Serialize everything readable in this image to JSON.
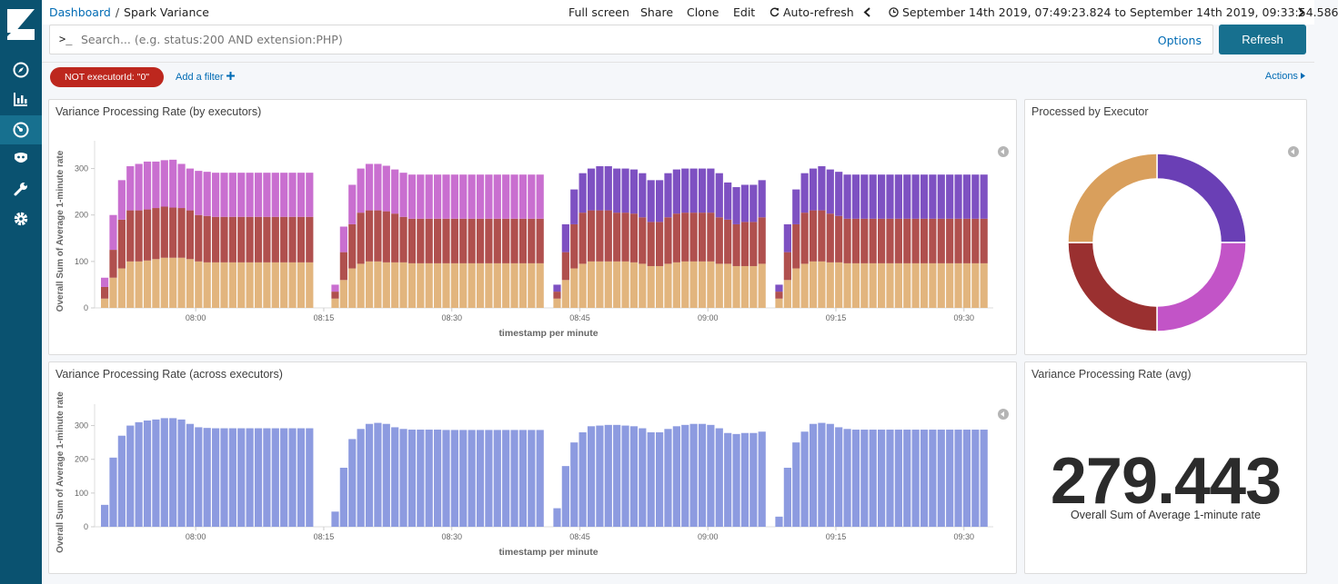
{
  "sidebar": {
    "items": [
      {
        "icon": "compass-icon",
        "label": "Discover"
      },
      {
        "icon": "bar-chart-icon",
        "label": "Visualize"
      },
      {
        "icon": "dashboard-icon",
        "label": "Dashboard",
        "active": true
      },
      {
        "icon": "timelion-icon",
        "label": "Timelion"
      },
      {
        "icon": "wrench-icon",
        "label": "Dev Tools"
      },
      {
        "icon": "gear-icon",
        "label": "Management"
      }
    ]
  },
  "breadcrumb": {
    "root": "Dashboard",
    "separator": "/",
    "current": "Spark Variance"
  },
  "top_actions": {
    "full_screen": "Full screen",
    "share": "Share",
    "clone": "Clone",
    "edit": "Edit",
    "auto_refresh": "Auto-refresh",
    "time_range": "September 14th 2019, 07:49:23.824 to September 14th 2019, 09:33:54.586"
  },
  "query": {
    "prompt": ">_",
    "placeholder": "Search... (e.g. status:200 AND extension:PHP)",
    "options": "Options",
    "refresh": "Refresh"
  },
  "filters": {
    "pill": "NOT executorId: \"0\"",
    "add": "Add a filter",
    "actions": "Actions"
  },
  "colors": {
    "c1": "#e2b57e",
    "c2": "#b0504e",
    "c3": "#c96fd0",
    "c4": "#7e51c2",
    "single": "#8d9be0",
    "donut_orange": "#d99f5c",
    "donut_purple": "#6a3fb5",
    "donut_pink": "#c254c7",
    "donut_red": "#9a3030"
  },
  "panels": {
    "p1": {
      "title": "Variance Processing Rate (by executors)"
    },
    "p2": {
      "title": "Processed by Executor"
    },
    "p3": {
      "title": "Variance Processing Rate (across executors)"
    },
    "p4": {
      "title": "Variance Processing Rate (avg)",
      "value": "279.443",
      "label": "Overall Sum of Average 1-minute rate"
    }
  },
  "chart_data": [
    {
      "type": "bar",
      "stacked": true,
      "title": "Variance Processing Rate (by executors)",
      "xlabel": "timestamp per minute",
      "ylabel": "Overall Sum of Average 1-minute rate",
      "ylim": [
        0,
        350
      ],
      "yticks": [
        0,
        100,
        200,
        300
      ],
      "xticks": [
        "08:00",
        "08:15",
        "08:30",
        "08:45",
        "09:00",
        "09:15",
        "09:30"
      ],
      "segments": [
        {
          "start_minute": 0,
          "values": [
            [
              20,
              25,
              20,
              0
            ],
            [
              65,
              60,
              75,
              0
            ],
            [
              85,
              105,
              85,
              0
            ],
            [
              100,
              110,
              95,
              0
            ],
            [
              100,
              110,
              100,
              0
            ],
            [
              102,
              110,
              103,
              0
            ],
            [
              105,
              110,
              100,
              0
            ],
            [
              108,
              110,
              100,
              0
            ],
            [
              108,
              108,
              103,
              0
            ],
            [
              108,
              107,
              95,
              0
            ],
            [
              105,
              105,
              90,
              0
            ],
            [
              100,
              100,
              95,
              0
            ],
            [
              98,
              100,
              95,
              0
            ],
            [
              98,
              98,
              95,
              0
            ],
            [
              98,
              98,
              95,
              0
            ],
            [
              98,
              98,
              95,
              0
            ],
            [
              98,
              98,
              95,
              0
            ],
            [
              98,
              98,
              95,
              0
            ],
            [
              98,
              98,
              95,
              0
            ],
            [
              98,
              98,
              95,
              0
            ],
            [
              98,
              98,
              95,
              0
            ],
            [
              98,
              98,
              95,
              0
            ],
            [
              98,
              98,
              95,
              0
            ],
            [
              98,
              98,
              95,
              0
            ],
            [
              98,
              98,
              95,
              0
            ]
          ]
        },
        {
          "start_minute": 27,
          "values": [
            [
              20,
              15,
              15,
              0
            ],
            [
              60,
              60,
              55,
              0
            ],
            [
              85,
              95,
              85,
              0
            ],
            [
              95,
              110,
              95,
              0
            ],
            [
              100,
              110,
              100,
              0
            ],
            [
              100,
              110,
              100,
              0
            ],
            [
              98,
              110,
              98,
              0
            ],
            [
              98,
              105,
              95,
              0
            ],
            [
              98,
              98,
              95,
              0
            ],
            [
              96,
              96,
              95,
              0
            ],
            [
              96,
              96,
              95,
              0
            ],
            [
              96,
              96,
              95,
              0
            ],
            [
              96,
              96,
              95,
              0
            ],
            [
              96,
              96,
              95,
              0
            ],
            [
              96,
              96,
              95,
              0
            ],
            [
              96,
              96,
              95,
              0
            ],
            [
              96,
              96,
              95,
              0
            ],
            [
              96,
              96,
              95,
              0
            ],
            [
              96,
              96,
              95,
              0
            ],
            [
              96,
              96,
              95,
              0
            ],
            [
              96,
              96,
              95,
              0
            ],
            [
              96,
              96,
              95,
              0
            ],
            [
              96,
              96,
              95,
              0
            ],
            [
              96,
              96,
              95,
              0
            ],
            [
              96,
              96,
              95,
              0
            ]
          ]
        },
        {
          "start_minute": 53,
          "values": [
            [
              20,
              15,
              0,
              15
            ],
            [
              60,
              60,
              0,
              60
            ],
            [
              85,
              95,
              0,
              75
            ],
            [
              95,
              110,
              0,
              85
            ],
            [
              100,
              110,
              0,
              90
            ],
            [
              100,
              110,
              0,
              95
            ],
            [
              100,
              110,
              0,
              95
            ],
            [
              100,
              105,
              0,
              95
            ],
            [
              100,
              105,
              0,
              95
            ],
            [
              98,
              105,
              0,
              95
            ],
            [
              95,
              100,
              0,
              95
            ],
            [
              90,
              95,
              0,
              90
            ],
            [
              90,
              95,
              0,
              90
            ],
            [
              95,
              100,
              0,
              95
            ],
            [
              98,
              105,
              0,
              95
            ],
            [
              100,
              105,
              0,
              95
            ],
            [
              100,
              105,
              0,
              95
            ],
            [
              100,
              105,
              0,
              95
            ],
            [
              100,
              105,
              0,
              95
            ],
            [
              95,
              100,
              0,
              95
            ],
            [
              95,
              95,
              0,
              80
            ],
            [
              90,
              90,
              0,
              80
            ],
            [
              90,
              95,
              0,
              80
            ],
            [
              90,
              95,
              0,
              80
            ],
            [
              95,
              100,
              0,
              80
            ]
          ]
        },
        {
          "start_minute": 79,
          "values": [
            [
              20,
              15,
              0,
              15
            ],
            [
              60,
              60,
              0,
              60
            ],
            [
              85,
              95,
              0,
              75
            ],
            [
              95,
              110,
              0,
              85
            ],
            [
              100,
              110,
              0,
              90
            ],
            [
              100,
              110,
              0,
              95
            ],
            [
              98,
              105,
              0,
              95
            ],
            [
              98,
              100,
              0,
              95
            ],
            [
              96,
              96,
              0,
              95
            ],
            [
              96,
              96,
              0,
              95
            ],
            [
              96,
              96,
              0,
              95
            ],
            [
              96,
              96,
              0,
              95
            ],
            [
              96,
              96,
              0,
              95
            ],
            [
              96,
              96,
              0,
              95
            ],
            [
              96,
              96,
              0,
              95
            ],
            [
              96,
              96,
              0,
              95
            ],
            [
              96,
              96,
              0,
              95
            ],
            [
              96,
              96,
              0,
              95
            ],
            [
              96,
              96,
              0,
              95
            ],
            [
              96,
              96,
              0,
              95
            ],
            [
              96,
              96,
              0,
              95
            ],
            [
              96,
              96,
              0,
              95
            ],
            [
              96,
              96,
              0,
              95
            ],
            [
              96,
              96,
              0,
              95
            ],
            [
              96,
              96,
              0,
              95
            ]
          ]
        }
      ]
    },
    {
      "type": "pie",
      "donut": true,
      "title": "Processed by Executor",
      "slices": [
        {
          "value": 25,
          "color": "#6a3fb5"
        },
        {
          "value": 25,
          "color": "#c254c7"
        },
        {
          "value": 25,
          "color": "#9a3030"
        },
        {
          "value": 25,
          "color": "#d99f5c"
        }
      ]
    },
    {
      "type": "bar",
      "title": "Variance Processing Rate (across executors)",
      "xlabel": "timestamp per minute",
      "ylabel": "Overall Sum of Average 1-minute rate",
      "ylim": [
        0,
        350
      ],
      "yticks": [
        0,
        100,
        200,
        300
      ],
      "xticks": [
        "08:00",
        "08:15",
        "08:30",
        "08:45",
        "09:00",
        "09:15",
        "09:30"
      ],
      "segments": [
        {
          "start_minute": 0,
          "values": [
            65,
            205,
            270,
            300,
            310,
            315,
            318,
            322,
            322,
            318,
            305,
            295,
            293,
            292,
            292,
            292,
            292,
            292,
            292,
            292,
            292,
            292,
            292,
            292,
            292
          ]
        },
        {
          "start_minute": 27,
          "values": [
            45,
            175,
            260,
            290,
            305,
            308,
            305,
            295,
            290,
            288,
            288,
            288,
            288,
            287,
            287,
            287,
            287,
            287,
            287,
            287,
            287,
            287,
            287,
            287,
            287
          ]
        },
        {
          "start_minute": 53,
          "values": [
            55,
            180,
            250,
            280,
            298,
            300,
            302,
            302,
            300,
            298,
            292,
            280,
            280,
            290,
            298,
            302,
            305,
            305,
            302,
            292,
            278,
            275,
            278,
            278,
            282
          ]
        },
        {
          "start_minute": 79,
          "values": [
            30,
            175,
            250,
            282,
            305,
            308,
            305,
            295,
            290,
            288,
            288,
            288,
            288,
            288,
            288,
            288,
            288,
            288,
            288,
            288,
            288,
            288,
            288,
            288,
            288
          ]
        }
      ]
    }
  ]
}
